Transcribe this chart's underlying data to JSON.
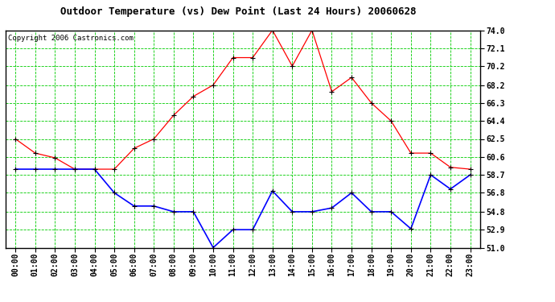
{
  "title": "Outdoor Temperature (vs) Dew Point (Last 24 Hours) 20060628",
  "copyright": "Copyright 2006 Castronics.com",
  "hours": [
    "00:00",
    "01:00",
    "02:00",
    "03:00",
    "04:00",
    "05:00",
    "06:00",
    "07:00",
    "08:00",
    "09:00",
    "10:00",
    "11:00",
    "12:00",
    "13:00",
    "14:00",
    "15:00",
    "16:00",
    "17:00",
    "18:00",
    "19:00",
    "20:00",
    "21:00",
    "22:00",
    "23:00"
  ],
  "temp_red": [
    62.5,
    61.0,
    60.5,
    59.3,
    59.3,
    59.3,
    61.5,
    62.5,
    65.0,
    67.0,
    68.2,
    71.1,
    71.1,
    74.0,
    70.2,
    74.0,
    67.5,
    69.0,
    66.3,
    64.4,
    61.0,
    61.0,
    59.5,
    59.3
  ],
  "dew_blue": [
    59.3,
    59.3,
    59.3,
    59.3,
    59.3,
    56.8,
    55.4,
    55.4,
    54.8,
    54.8,
    51.0,
    52.9,
    52.9,
    57.0,
    54.8,
    54.8,
    55.2,
    56.8,
    54.8,
    54.8,
    53.0,
    58.7,
    57.2,
    58.7
  ],
  "ylim": [
    51.0,
    74.0
  ],
  "yticks": [
    51.0,
    52.9,
    54.8,
    56.8,
    58.7,
    60.6,
    62.5,
    64.4,
    66.3,
    68.2,
    70.2,
    72.1,
    74.0
  ],
  "bg_color": "#ffffff",
  "plot_bg": "#ffffff",
  "grid_color": "#00cc00",
  "red_color": "#ff0000",
  "blue_color": "#0000ff",
  "title_fontsize": 9,
  "copyright_fontsize": 6.5,
  "tick_fontsize": 7
}
